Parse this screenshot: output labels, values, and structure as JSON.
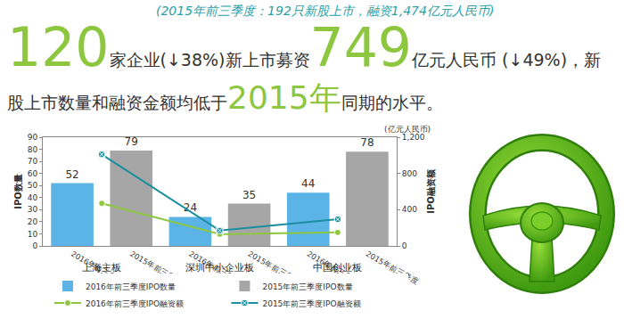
{
  "header": {
    "subtitle": "(2015年前三季度：192只新股上市，融资1,474亿元人民币)",
    "lines": [
      [
        {
          "text": "120",
          "emphasis": true
        },
        {
          "text": "家企业(↓38%)新上市募资",
          "emphasis": false
        },
        {
          "text": "749",
          "emphasis": true
        },
        {
          "text": "亿元人民币 (↓49%)，新",
          "emphasis": false
        }
      ],
      [
        {
          "text": "股上市数量和融资金额均低于",
          "emphasis": false
        },
        {
          "text": "2015年",
          "emphasis": true
        },
        {
          "text": "同期的水平。",
          "emphasis": false
        }
      ]
    ]
  },
  "chart_data": {
    "type": "bar",
    "categories": [
      "上海主板",
      "深圳中小企业板",
      "中国创业板"
    ],
    "subcategories": [
      "2016年前三季度",
      "2015年前三季度"
    ],
    "series": [
      {
        "name": "2016年前三季度IPO数量",
        "type": "bar",
        "color": "#5bb4e5",
        "values": [
          52,
          24,
          44
        ],
        "data_labels": true
      },
      {
        "name": "2015年前三季度IPO数量",
        "type": "bar",
        "color": "#a6a6a6",
        "values": [
          79,
          35,
          78
        ],
        "data_labels": true
      },
      {
        "name": "2016年前三季度IPO融资额",
        "type": "line",
        "axis": "y2",
        "color": "#8dc63f",
        "marker": "circle",
        "values": [
          470,
          130,
          149
        ]
      },
      {
        "name": "2015年前三季度IPO融资额",
        "type": "line",
        "axis": "y2",
        "color": "#1a8fa0",
        "marker": "square",
        "values": [
          1010,
          170,
          294
        ]
      }
    ],
    "ylabel": "IPO数量",
    "y2label": "IPO融资额",
    "annotations": [
      "(亿元人民币)"
    ],
    "ylim": [
      0,
      90
    ],
    "yticks": [
      0,
      10,
      20,
      30,
      40,
      50,
      60,
      70,
      80,
      90
    ],
    "y2lim": [
      0,
      1200
    ],
    "y2ticks": [
      0,
      400,
      800,
      {
        "value": 1200,
        "label": "1,200"
      }
    ],
    "grid": false,
    "legend": "bottom"
  }
}
